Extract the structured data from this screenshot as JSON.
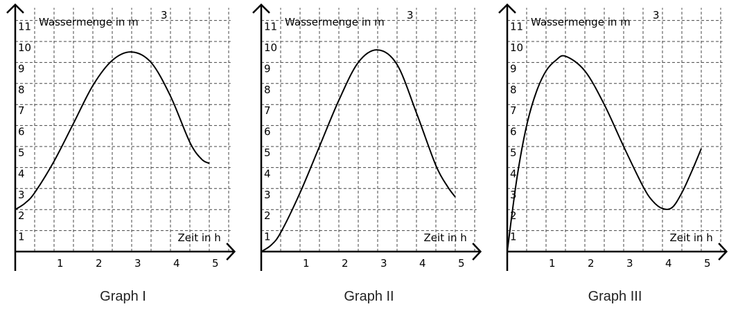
{
  "chart_data": [
    {
      "type": "line",
      "caption": "Graph I",
      "ylabel": "Wassermenge in m",
      "ylabel_sup": "3",
      "xlabel": "Zeit in h",
      "xticks": [
        1,
        2,
        3,
        4,
        5
      ],
      "yticks": [
        1,
        2,
        3,
        4,
        5,
        6,
        7,
        8,
        9,
        10,
        11
      ],
      "xlim": [
        0,
        5
      ],
      "ylim": [
        0,
        11
      ],
      "grid": true,
      "series": [
        {
          "x": [
            0,
            0.25,
            0.5,
            1,
            1.5,
            2,
            2.5,
            3,
            3.5,
            4,
            4.5,
            4.8,
            5
          ],
          "y": [
            2.0,
            2.3,
            2.8,
            4.3,
            6.1,
            7.9,
            9.1,
            9.5,
            9.0,
            7.4,
            5.2,
            4.4,
            4.2
          ]
        }
      ]
    },
    {
      "type": "line",
      "caption": "Graph II",
      "ylabel": "Wassermenge in m",
      "ylabel_sup": "3",
      "xlabel": "Zeit in h",
      "xticks": [
        1,
        2,
        3,
        4,
        5
      ],
      "yticks": [
        1,
        2,
        3,
        4,
        5,
        6,
        7,
        8,
        9,
        10,
        11
      ],
      "xlim": [
        0,
        5
      ],
      "ylim": [
        0,
        11
      ],
      "grid": true,
      "series": [
        {
          "x": [
            0,
            0.25,
            0.5,
            1,
            1.5,
            2,
            2.5,
            3,
            3.5,
            4,
            4.5,
            4.8,
            5
          ],
          "y": [
            0.0,
            0.3,
            0.9,
            2.8,
            5.0,
            7.2,
            9.0,
            9.6,
            8.9,
            6.6,
            4.1,
            3.1,
            2.6
          ]
        }
      ]
    },
    {
      "type": "line",
      "caption": "Graph III",
      "ylabel": "Wassermenge in m",
      "ylabel_sup": "3",
      "xlabel": "Zeit in h",
      "xticks": [
        1,
        2,
        3,
        4,
        5
      ],
      "yticks": [
        1,
        2,
        3,
        4,
        5,
        6,
        7,
        8,
        9,
        10,
        11
      ],
      "xlim": [
        0,
        5
      ],
      "ylim": [
        0,
        11
      ],
      "grid": true,
      "series": [
        {
          "x": [
            0,
            0.25,
            0.5,
            0.75,
            1,
            1.25,
            1.5,
            2,
            2.5,
            3,
            3.5,
            3.75,
            4,
            4.25,
            4.5,
            4.75,
            5
          ],
          "y": [
            0.0,
            3.5,
            6.0,
            7.6,
            8.6,
            9.1,
            9.3,
            8.6,
            7.0,
            5.0,
            3.1,
            2.4,
            2.05,
            2.1,
            2.8,
            3.8,
            4.9
          ]
        }
      ]
    }
  ]
}
